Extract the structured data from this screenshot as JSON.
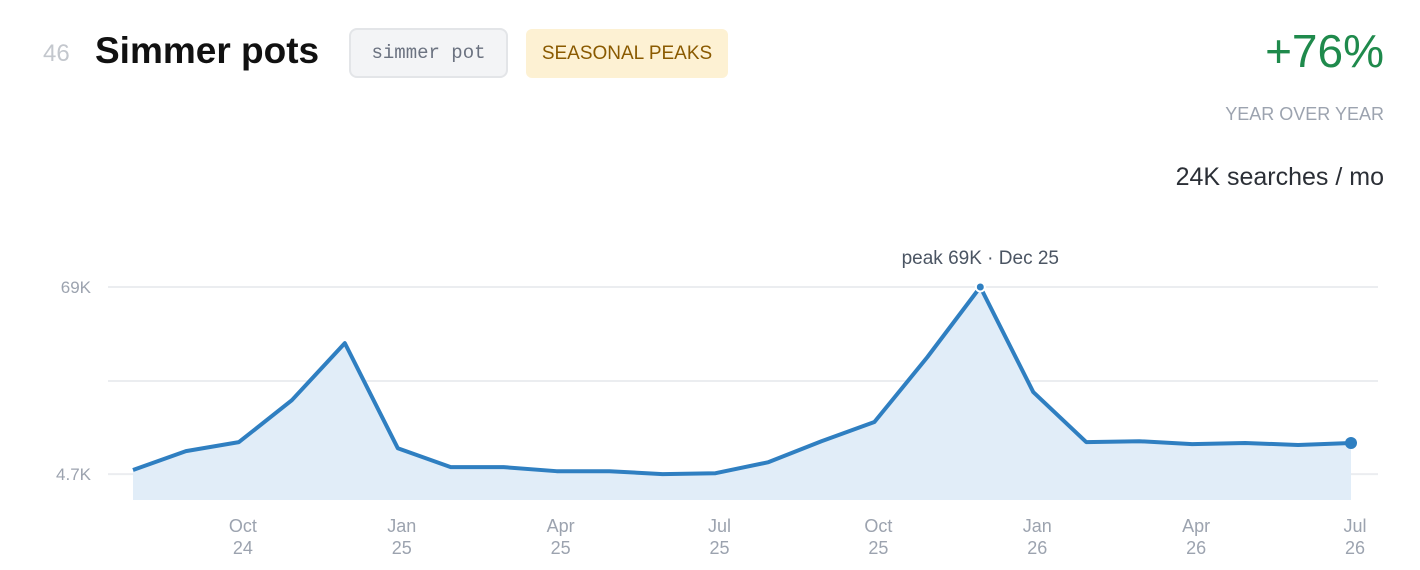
{
  "header": {
    "rank": "46",
    "title": "Simmer pots",
    "tag": "simmer pot",
    "badge": "SEASONAL PEAKS",
    "growth": "+76%",
    "growth_label": "YEAR OVER YEAR",
    "volume": "24K searches / mo"
  },
  "chart_data": {
    "type": "area",
    "categories": [
      null,
      null,
      "Oct\n24",
      null,
      null,
      "Jan\n25",
      null,
      null,
      "Apr\n25",
      null,
      null,
      "Jul\n25",
      null,
      null,
      "Oct\n25",
      null,
      null,
      "Jan\n26",
      null,
      null,
      "Apr\n26",
      null,
      null,
      "Jul\n26"
    ],
    "values": [
      6100,
      12600,
      15700,
      30100,
      49700,
      13600,
      7100,
      7100,
      5700,
      5700,
      4700,
      5000,
      8800,
      16000,
      22600,
      44900,
      69000,
      32900,
      15700,
      16000,
      15000,
      15400,
      14700,
      15400
    ],
    "color": "#2f7fc1",
    "fill": "#e1edf8",
    "ylim": [
      -4200,
      69000
    ],
    "yticks": [
      {
        "value": 4700,
        "label": "4.7K"
      },
      {
        "value": 69000,
        "label": "69K"
      }
    ],
    "grid": true,
    "annotation": "peak 69K · Dec 25"
  }
}
